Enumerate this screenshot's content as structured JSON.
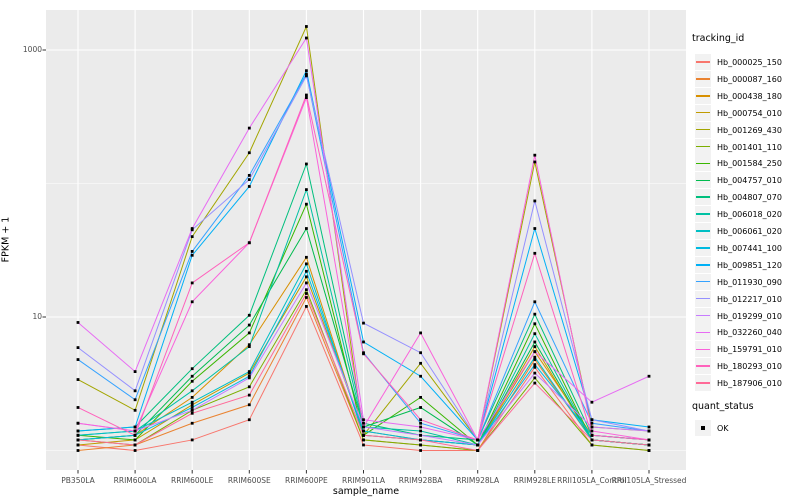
{
  "window": {
    "kind": "static-plot-view"
  },
  "chart_data": {
    "type": "line",
    "title": "",
    "xlabel": "sample_name",
    "ylabel": "FPKM + 1",
    "y_scale": "log10",
    "ylim": [
      0.72,
      2000
    ],
    "grid": "on",
    "legend_position": "right",
    "panel_bg": "#EBEBEB",
    "grid_color": "#FFFFFF",
    "point_color": "#000000",
    "axis_text_color": "#4D4D4D",
    "y_ticks": [
      {
        "value": 10,
        "label": "10"
      },
      {
        "value": 1000,
        "label": "1000"
      }
    ],
    "y_minor_ticks": [
      1,
      100
    ],
    "categories": [
      "PB350LA",
      "RRIM600LA",
      "RRIM600LE",
      "RRIM600SE",
      "RRIM600PE",
      "RRIM901LA",
      "RRIM928BA",
      "RRIM928LA",
      "RRIM928LE",
      "RRII105LA_Control",
      "RRII105LA_Stressed"
    ],
    "legend_title": "tracking_id",
    "series": [
      {
        "name": "Hb_000025_150",
        "color": "#F8766D",
        "values": [
          1.1,
          1.0,
          1.2,
          1.7,
          12,
          1.1,
          1.0,
          1.0,
          4.2,
          1.1,
          1.0
        ]
      },
      {
        "name": "Hb_000087_160",
        "color": "#EA8331",
        "values": [
          1.0,
          1.1,
          1.6,
          2.2,
          14,
          1.2,
          1.1,
          1.0,
          4.8,
          1.2,
          1.1
        ]
      },
      {
        "name": "Hb_000438_180",
        "color": "#D89000",
        "values": [
          1.2,
          1.3,
          2.5,
          6.2,
          28,
          1.3,
          1.2,
          1.1,
          5.5,
          1.3,
          1.2
        ]
      },
      {
        "name": "Hb_000754_010",
        "color": "#C09B00",
        "values": [
          1.1,
          1.2,
          2.2,
          3.8,
          20,
          1.4,
          1.2,
          1.1,
          6.0,
          1.2,
          1.1
        ]
      },
      {
        "name": "Hb_001269_430",
        "color": "#A3A500",
        "values": [
          3.4,
          2.0,
          40,
          170,
          1500,
          1.3,
          4.5,
          1.2,
          145,
          1.5,
          1.4
        ]
      },
      {
        "name": "Hb_001401_110",
        "color": "#7CAE00",
        "values": [
          1.2,
          1.1,
          2.0,
          3.0,
          16,
          1.2,
          1.1,
          1.0,
          3.5,
          1.1,
          1.0
        ]
      },
      {
        "name": "Hb_001584_250",
        "color": "#39B600",
        "values": [
          1.3,
          1.2,
          3.3,
          7.6,
          70,
          1.3,
          2.5,
          1.1,
          8.9,
          1.2,
          1.1
        ]
      },
      {
        "name": "Hb_004757_010",
        "color": "#00BB4E",
        "values": [
          1.2,
          1.3,
          3.6,
          8.7,
          46,
          1.5,
          2.1,
          1.1,
          6.5,
          1.2,
          1.1
        ]
      },
      {
        "name": "Hb_004807_070",
        "color": "#00BF7D",
        "values": [
          1.4,
          1.5,
          4.1,
          10.3,
          140,
          1.6,
          1.3,
          1.2,
          10.5,
          1.3,
          1.2
        ]
      },
      {
        "name": "Hb_006018_020",
        "color": "#00C1A3",
        "values": [
          1.3,
          1.4,
          2.8,
          6.0,
          90,
          1.5,
          1.4,
          1.1,
          7.5,
          1.2,
          1.1
        ]
      },
      {
        "name": "Hb_006061_020",
        "color": "#00BFC4",
        "values": [
          1.3,
          1.4,
          2.3,
          3.9,
          25,
          1.3,
          1.2,
          1.1,
          5.0,
          1.2,
          1.1
        ]
      },
      {
        "name": "Hb_007441_100",
        "color": "#00BAE0",
        "values": [
          1.2,
          1.3,
          2.1,
          3.6,
          22,
          1.4,
          1.2,
          1.1,
          4.4,
          1.3,
          1.2
        ]
      },
      {
        "name": "Hb_009851_120",
        "color": "#00B0F6",
        "values": [
          1.4,
          1.5,
          29,
          95,
          700,
          6.5,
          3.6,
          1.2,
          46,
          1.7,
          1.5
        ]
      },
      {
        "name": "Hb_011930_090",
        "color": "#35A2FF",
        "values": [
          4.8,
          2.4,
          31,
          115,
          660,
          5.4,
          1.6,
          1.2,
          13,
          1.6,
          1.4
        ]
      },
      {
        "name": "Hb_012217_010",
        "color": "#9590FF",
        "values": [
          5.9,
          2.8,
          45,
          107,
          640,
          9.0,
          5.4,
          1.2,
          74,
          1.7,
          1.4
        ]
      },
      {
        "name": "Hb_019299_010",
        "color": "#C77CFF",
        "values": [
          1.6,
          1.4,
          2.0,
          3.5,
          18,
          1.5,
          1.3,
          1.1,
          3.8,
          1.5,
          1.4
        ]
      },
      {
        "name": "Hb_032260_040",
        "color": "#E76BF3",
        "values": [
          9.1,
          3.9,
          46,
          260,
          1230,
          1.7,
          1.5,
          1.2,
          5.5,
          2.3,
          3.6
        ]
      },
      {
        "name": "Hb_159791_010",
        "color": "#FA62DB",
        "values": [
          1.6,
          1.4,
          13,
          36,
          440,
          1.5,
          7.6,
          1.2,
          163,
          1.4,
          1.2
        ]
      },
      {
        "name": "Hb_180293_010",
        "color": "#FF62BC",
        "values": [
          2.1,
          1.3,
          18,
          36,
          460,
          5.3,
          1.7,
          1.2,
          30,
          1.3,
          1.2
        ]
      },
      {
        "name": "Hb_187906_010",
        "color": "#FF6A98",
        "values": [
          1.2,
          1.1,
          1.9,
          2.6,
          15,
          1.3,
          1.2,
          1.0,
          3.2,
          1.2,
          1.1
        ]
      }
    ],
    "quant_legend": {
      "title": "quant_status",
      "items": [
        {
          "label": "OK",
          "marker": "black-square"
        }
      ]
    }
  }
}
